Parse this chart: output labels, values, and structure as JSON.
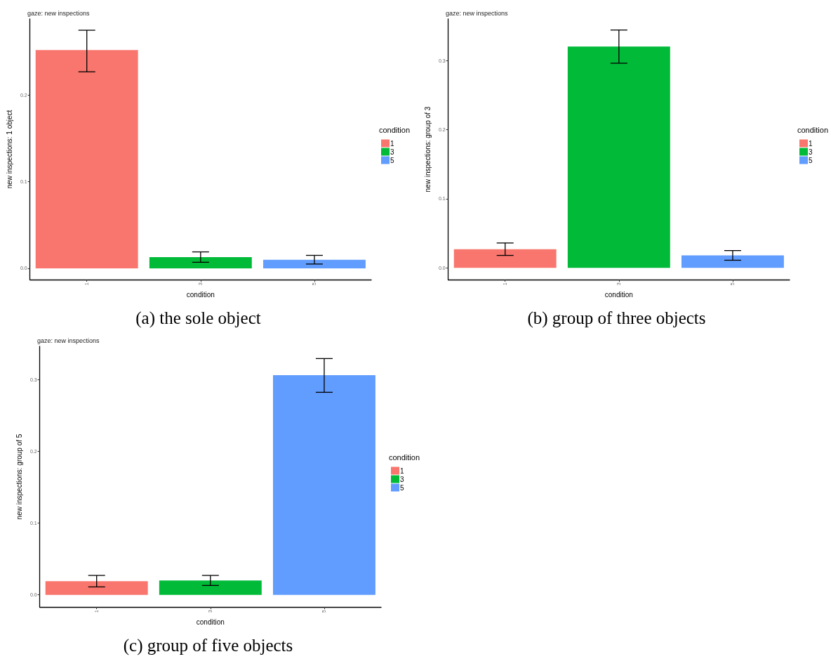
{
  "chart_data": [
    {
      "type": "bar",
      "title": "gaze: new inspections",
      "xlabel": "condition",
      "ylabel": "new inspections: 1 object",
      "legend_title": "condition",
      "legend": "right",
      "categories": [
        "1",
        "3",
        "5"
      ],
      "series": [
        {
          "name": "1",
          "color": "#f8766d",
          "values": [
            0.252,
            null,
            null
          ],
          "errors": [
            [
              0.227,
              0.275
            ],
            null,
            null
          ]
        },
        {
          "name": "3",
          "color": "#00ba38",
          "values": [
            null,
            0.013,
            null
          ],
          "errors": [
            null,
            [
              0.007,
              0.019
            ],
            null
          ]
        },
        {
          "name": "5",
          "color": "#619cff",
          "values": [
            null,
            null,
            0.01
          ],
          "errors": [
            null,
            null,
            [
              0.005,
              0.015
            ]
          ]
        }
      ],
      "ylim": [
        -0.013,
        0.288
      ],
      "yticks": [
        {
          "value": 0,
          "label": "0.0"
        },
        {
          "value": 0.1,
          "label": "0.1"
        },
        {
          "value": 0.2,
          "label": "0.2"
        }
      ],
      "annotations": [
        "(a) the sole object"
      ]
    },
    {
      "type": "bar",
      "title": "gaze: new inspections",
      "xlabel": "condition",
      "ylabel": "new inspections: group of 3",
      "legend_title": "condition",
      "legend": "right",
      "categories": [
        "1",
        "3",
        "5"
      ],
      "series": [
        {
          "name": "1",
          "color": "#f8766d",
          "values": [
            0.027,
            null,
            null
          ],
          "errors": [
            [
              0.018,
              0.036
            ],
            null,
            null
          ]
        },
        {
          "name": "3",
          "color": "#00ba38",
          "values": [
            null,
            0.32,
            null
          ],
          "errors": [
            null,
            [
              0.296,
              0.344
            ],
            null
          ]
        },
        {
          "name": "5",
          "color": "#619cff",
          "values": [
            null,
            null,
            0.018
          ],
          "errors": [
            null,
            null,
            [
              0.011,
              0.025
            ]
          ]
        }
      ],
      "ylim": [
        -0.017,
        0.36
      ],
      "yticks": [
        {
          "value": 0,
          "label": "0.0"
        },
        {
          "value": 0.1,
          "label": "0.1"
        },
        {
          "value": 0.2,
          "label": "0.2"
        },
        {
          "value": 0.3,
          "label": "0.3"
        }
      ],
      "annotations": [
        "(b) group of three objects"
      ]
    },
    {
      "type": "bar",
      "title": "gaze: new inspections",
      "xlabel": "condition",
      "ylabel": "new inspections: group of 5",
      "legend_title": "condition",
      "legend": "right",
      "categories": [
        "1",
        "3",
        "5"
      ],
      "series": [
        {
          "name": "1",
          "color": "#f8766d",
          "values": [
            0.019,
            null,
            null
          ],
          "errors": [
            [
              0.011,
              0.027
            ],
            null,
            null
          ]
        },
        {
          "name": "3",
          "color": "#00ba38",
          "values": [
            null,
            0.02,
            null
          ],
          "errors": [
            null,
            [
              0.013,
              0.027
            ],
            null
          ]
        },
        {
          "name": "5",
          "color": "#619cff",
          "values": [
            null,
            null,
            0.306
          ],
          "errors": [
            null,
            null,
            [
              0.282,
              0.329
            ]
          ]
        }
      ],
      "ylim": [
        -0.017,
        0.346
      ],
      "yticks": [
        {
          "value": 0,
          "label": "0.0"
        },
        {
          "value": 0.1,
          "label": "0.1"
        },
        {
          "value": 0.2,
          "label": "0.2"
        },
        {
          "value": 0.3,
          "label": "0.3"
        }
      ],
      "annotations": [
        "(c) group of five objects"
      ]
    }
  ]
}
